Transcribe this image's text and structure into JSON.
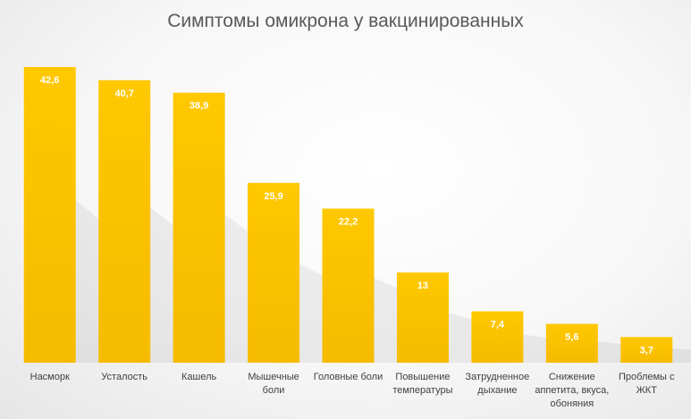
{
  "chart_data": {
    "type": "bar",
    "title": "Симптомы омикрона у вакцинированных",
    "categories": [
      [
        "Насморк"
      ],
      [
        "Усталость"
      ],
      [
        "Кашель"
      ],
      [
        "Мышечные",
        "боли"
      ],
      [
        "Головные боли"
      ],
      [
        "Повышение",
        "температуры"
      ],
      [
        "Затрудненное",
        "дыхание"
      ],
      [
        "Снижение",
        "аппетита, вкуса,",
        "обоняния"
      ],
      [
        "Проблемы с",
        "ЖКТ"
      ]
    ],
    "values": [
      42.6,
      40.7,
      38.9,
      25.9,
      22.2,
      13,
      7.4,
      5.6,
      3.7
    ],
    "value_labels": [
      "42,6",
      "40,7",
      "38,9",
      "25,9",
      "22,2",
      "13",
      "7,4",
      "5,6",
      "3,7"
    ],
    "ylim": [
      0,
      42.6
    ],
    "grid": false,
    "legend": "none",
    "bar_color": "#f5bb00",
    "bar_color_top": "#ffc800",
    "label_color": "#ffffff"
  }
}
